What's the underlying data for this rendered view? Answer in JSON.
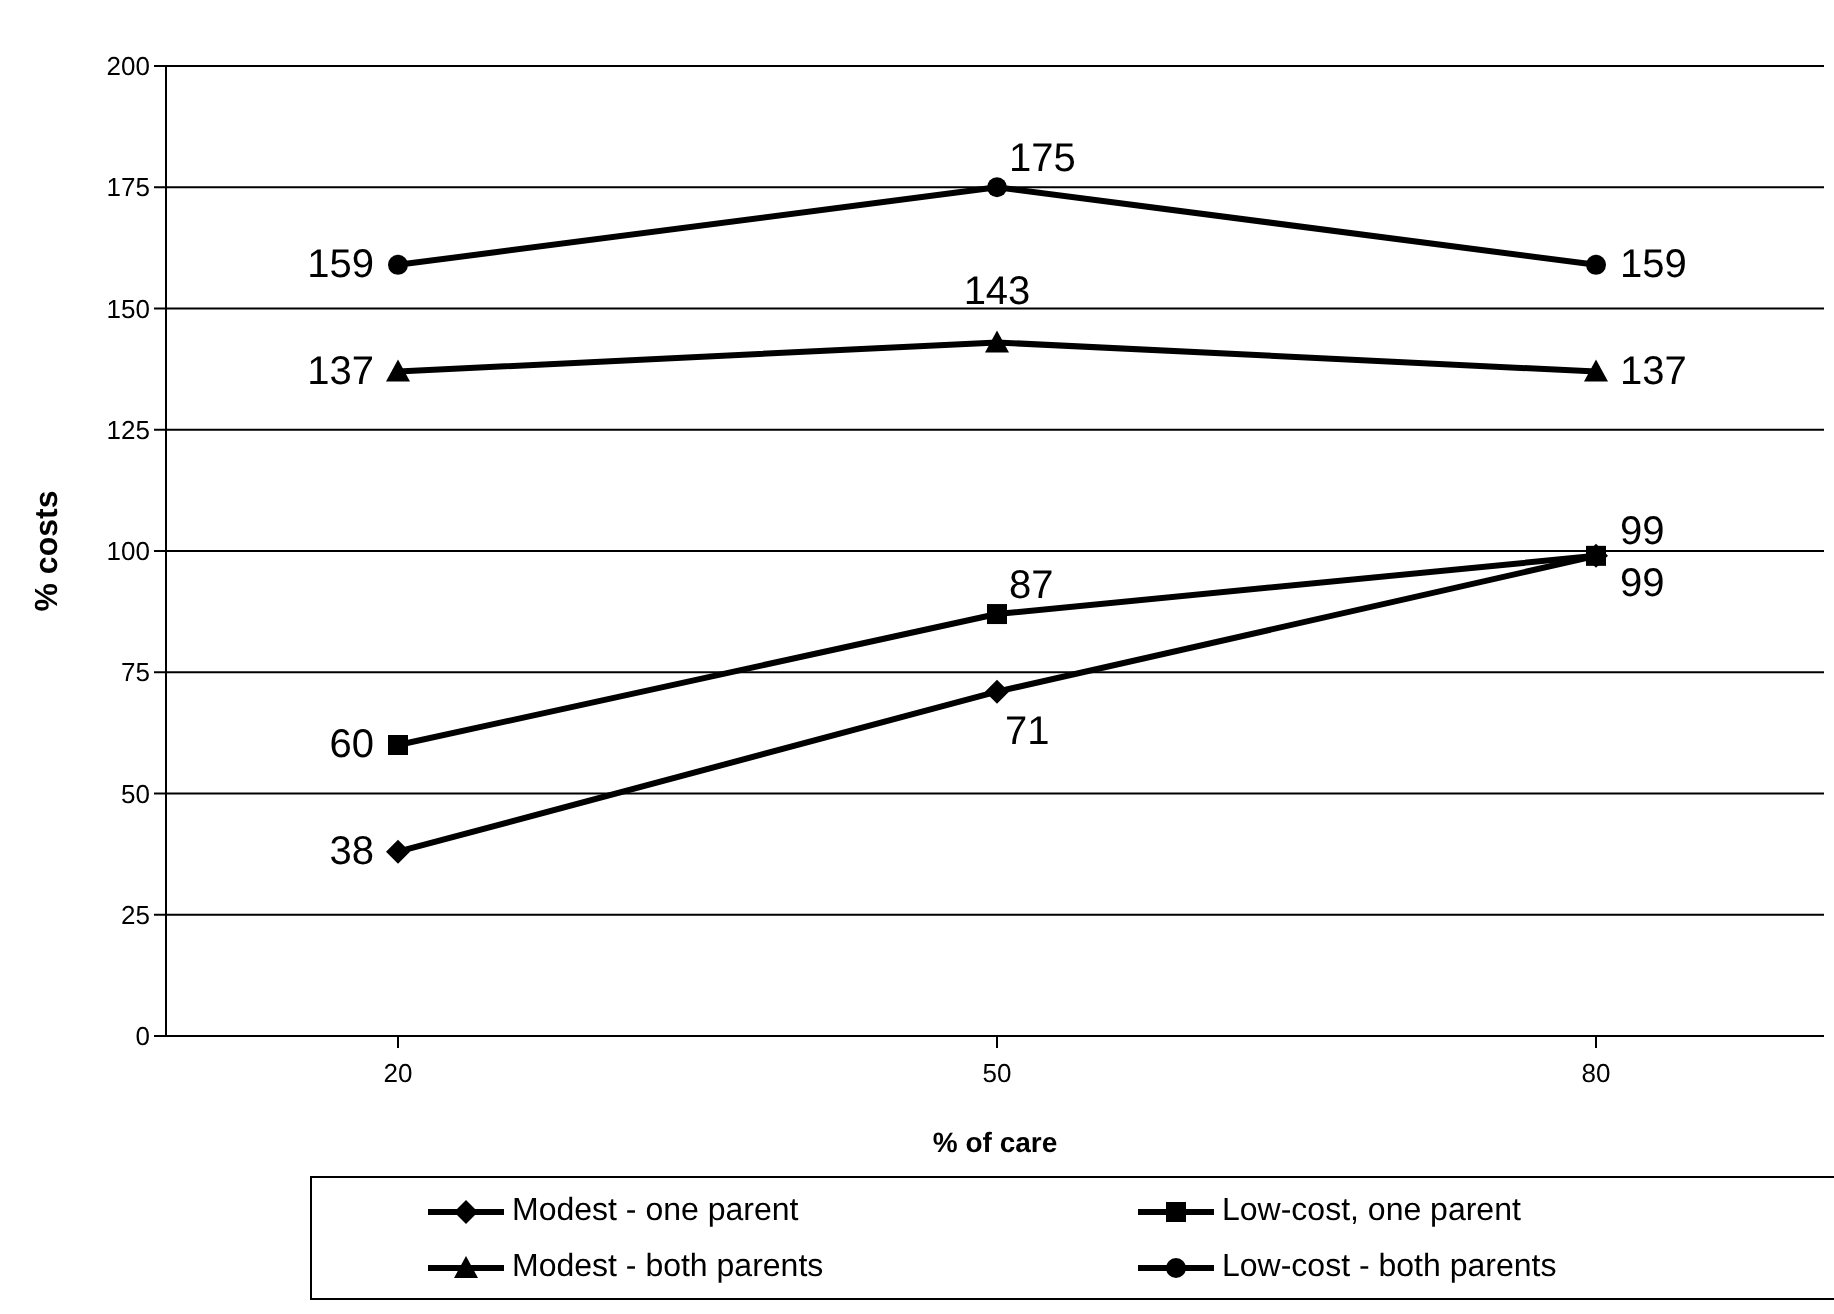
{
  "chart_data": {
    "type": "line",
    "xlabel": "% of care",
    "ylabel": "% costs",
    "categories": [
      "20",
      "50",
      "80"
    ],
    "series": [
      {
        "name": "Modest - one parent",
        "color": "#000000",
        "marker": "diamond",
        "values": [
          38,
          71,
          99
        ]
      },
      {
        "name": "Low-cost, one parent",
        "color": "#000000",
        "marker": "square",
        "values": [
          60,
          87,
          99
        ]
      },
      {
        "name": "Modest - both parents",
        "color": "#000000",
        "marker": "triangle",
        "values": [
          137,
          143,
          137
        ]
      },
      {
        "name": "Low-cost - both parents",
        "color": "#000000",
        "marker": "circle",
        "values": [
          159,
          175,
          159
        ]
      }
    ],
    "ylim": [
      0,
      200
    ],
    "yticks": [
      0,
      25,
      50,
      75,
      100,
      125,
      150,
      175,
      200
    ],
    "grid": "y",
    "legend": "bottom",
    "data_labels": true,
    "line_style": "solid"
  }
}
